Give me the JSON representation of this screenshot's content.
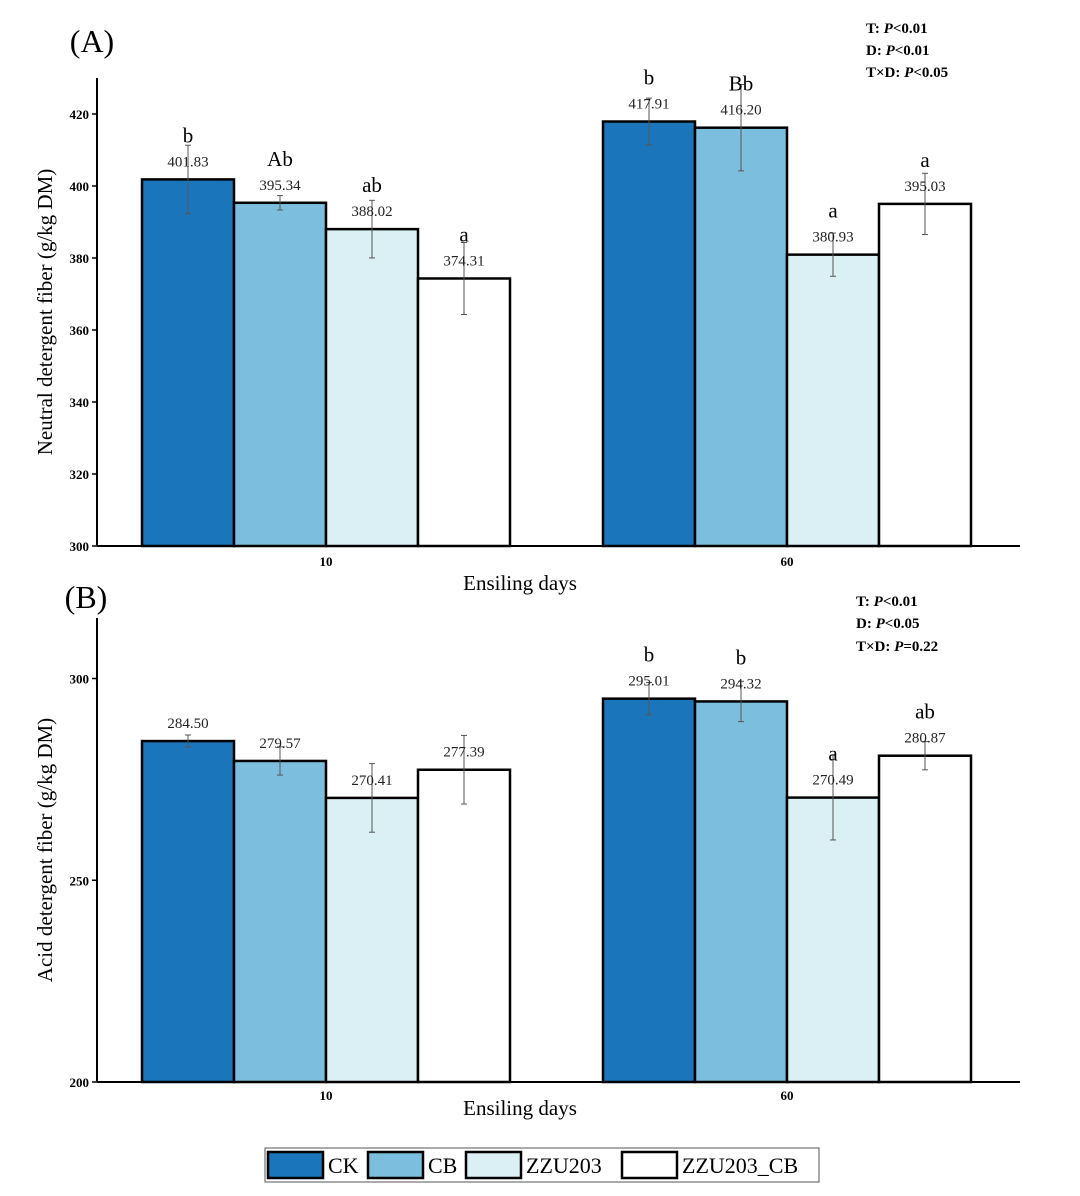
{
  "colors": {
    "CK": "#1a75bb",
    "CB": "#7cbede",
    "ZZU203": "#daf0f5",
    "ZZU203_CB": "#ffffff"
  },
  "legend": [
    "CK",
    "CB",
    "ZZU203",
    "ZZU203_CB"
  ],
  "chart_data": [
    {
      "type": "bar",
      "panel": "(A)",
      "xlabel": "Ensiling days",
      "ylabel": "Neutral detergent fiber (g/kg DM)",
      "ylim": [
        300,
        430
      ],
      "yticks": [
        300,
        320,
        340,
        360,
        380,
        400,
        420
      ],
      "categories": [
        "10",
        "60"
      ],
      "series": [
        {
          "name": "CK",
          "values": [
            401.83,
            417.91
          ],
          "labels": [
            "401.83",
            "417.91"
          ],
          "errors": [
            9.5,
            6.5
          ],
          "letters": [
            "b",
            "b"
          ]
        },
        {
          "name": "CB",
          "values": [
            395.34,
            416.2
          ],
          "labels": [
            "395.34",
            "416.20"
          ],
          "errors": [
            2.0,
            12.0
          ],
          "letters": [
            "Ab",
            "Bb"
          ]
        },
        {
          "name": "ZZU203",
          "values": [
            388.02,
            380.93
          ],
          "labels": [
            "388.02",
            "380.93"
          ],
          "errors": [
            8.0,
            6.0
          ],
          "letters": [
            "ab",
            "a"
          ]
        },
        {
          "name": "ZZU203_CB",
          "values": [
            374.31,
            395.03
          ],
          "labels": [
            "374.31",
            "395.03"
          ],
          "errors": [
            10.0,
            8.5
          ],
          "letters": [
            "a",
            "a"
          ]
        }
      ],
      "stats": [
        {
          "term": "T: ",
          "p": "P",
          "rest": "<0.01"
        },
        {
          "term": "D:  ",
          "p": "P",
          "rest": "<0.01"
        },
        {
          "term": "T×D: ",
          "p": "P",
          "rest": "<0.05"
        }
      ]
    },
    {
      "type": "bar",
      "panel": "(B)",
      "xlabel": "Ensiling days",
      "ylabel": "Acid detergent fiber (g/kg DM)",
      "ylim": [
        200,
        315
      ],
      "yticks": [
        200,
        250,
        300
      ],
      "categories": [
        "10",
        "60"
      ],
      "series": [
        {
          "name": "CK",
          "values": [
            284.5,
            295.01
          ],
          "labels": [
            "284.50",
            "295.01"
          ],
          "errors": [
            1.5,
            4.0
          ],
          "letters": [
            "",
            "b"
          ]
        },
        {
          "name": "CB",
          "values": [
            279.57,
            294.32
          ],
          "labels": [
            "279.57",
            "294.32"
          ],
          "errors": [
            3.5,
            5.0
          ],
          "letters": [
            "",
            "b"
          ]
        },
        {
          "name": "ZZU203",
          "values": [
            270.41,
            270.49
          ],
          "labels": [
            "270.41",
            "270.49"
          ],
          "errors": [
            8.5,
            10.5
          ],
          "letters": [
            "",
            "a"
          ]
        },
        {
          "name": "ZZU203_CB",
          "values": [
            277.39,
            280.87
          ],
          "labels": [
            "277.39",
            "280.87"
          ],
          "errors": [
            8.5,
            3.5
          ],
          "letters": [
            "",
            "ab"
          ]
        }
      ],
      "stats": [
        {
          "term": "T: ",
          "p": "P",
          "rest": "<0.01"
        },
        {
          "term": "D: ",
          "p": "P",
          "rest": "<0.05"
        },
        {
          "term": "T×D: ",
          "p": "P",
          "rest": "=0.22"
        }
      ]
    }
  ]
}
